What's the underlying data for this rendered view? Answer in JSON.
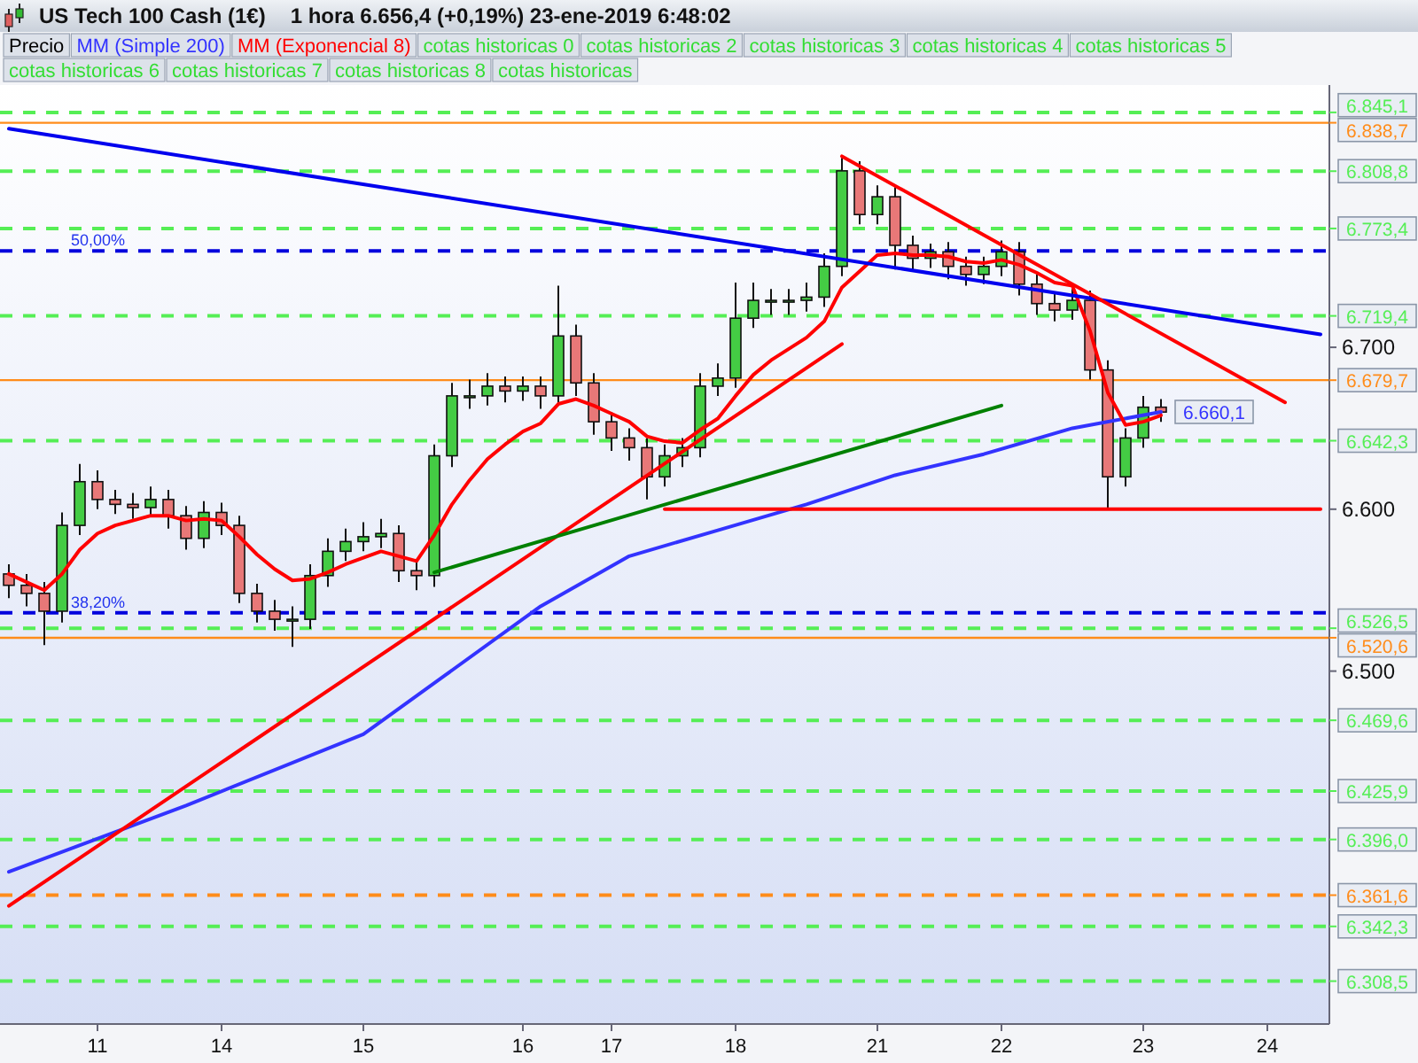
{
  "chart_data": {
    "type": "candlestick",
    "title": "US Tech 100 Cash (1€)",
    "subtitle": "1 hora   6.656,4 (+0,19%)   23-ene-2019 6:48:02",
    "categories": [
      null,
      null,
      null,
      null,
      null,
      "11",
      null,
      null,
      null,
      null,
      null,
      null,
      "14",
      null,
      null,
      null,
      null,
      null,
      null,
      null,
      "15",
      null,
      null,
      null,
      null,
      null,
      null,
      null,
      null,
      "16",
      null,
      null,
      null,
      null,
      "17",
      null,
      null,
      null,
      null,
      null,
      null,
      "18",
      null,
      null,
      null,
      null,
      null,
      null,
      null,
      "21",
      null,
      null,
      null,
      null,
      null,
      null,
      "22",
      null,
      null,
      null,
      null,
      null,
      null,
      null,
      "23",
      null,
      null,
      null,
      null,
      null,
      null,
      "24",
      null,
      null,
      null
    ],
    "ylim": [
      6282,
      6862
    ],
    "yticks": [
      {
        "value": 6500,
        "label": "6.500"
      },
      {
        "value": 6600,
        "label": "6.600"
      },
      {
        "value": 6700,
        "label": "6.700"
      }
    ],
    "legend": "top left",
    "series": [
      {
        "name": "Precio",
        "ohlc": [
          [
            6560,
            6566,
            6545,
            6553
          ],
          [
            6553,
            6560,
            6540,
            6548
          ],
          [
            6548,
            6555,
            6516,
            6537
          ],
          [
            6537,
            6598,
            6530,
            6590
          ],
          [
            6590,
            6628,
            6584,
            6617
          ],
          [
            6617,
            6624,
            6600,
            6606
          ],
          [
            6606,
            6612,
            6597,
            6603
          ],
          [
            6603,
            6610,
            6594,
            6601
          ],
          [
            6601,
            6614,
            6595,
            6606
          ],
          [
            6606,
            6612,
            6588,
            6596
          ],
          [
            6596,
            6602,
            6575,
            6582
          ],
          [
            6582,
            6605,
            6576,
            6598
          ],
          [
            6598,
            6604,
            6584,
            6590
          ],
          [
            6590,
            6596,
            6542,
            6548
          ],
          [
            6548,
            6554,
            6530,
            6537
          ],
          [
            6537,
            6544,
            6525,
            6532
          ],
          [
            6532,
            6540,
            6515,
            6532
          ],
          [
            6532,
            6566,
            6526,
            6559
          ],
          [
            6559,
            6582,
            6552,
            6574
          ],
          [
            6574,
            6588,
            6568,
            6580
          ],
          [
            6580,
            6592,
            6574,
            6583
          ],
          [
            6583,
            6594,
            6576,
            6585
          ],
          [
            6585,
            6590,
            6555,
            6562
          ],
          [
            6562,
            6568,
            6550,
            6559
          ],
          [
            6559,
            6640,
            6552,
            6633
          ],
          [
            6633,
            6678,
            6626,
            6670
          ],
          [
            6670,
            6680,
            6662,
            6670
          ],
          [
            6670,
            6684,
            6664,
            6676
          ],
          [
            6676,
            6682,
            6666,
            6673
          ],
          [
            6673,
            6682,
            6667,
            6676
          ],
          [
            6676,
            6682,
            6662,
            6670
          ],
          [
            6670,
            6738,
            6664,
            6707
          ],
          [
            6707,
            6714,
            6670,
            6678
          ],
          [
            6678,
            6684,
            6646,
            6654
          ],
          [
            6654,
            6660,
            6636,
            6644
          ],
          [
            6644,
            6650,
            6630,
            6638
          ],
          [
            6638,
            6644,
            6606,
            6620
          ],
          [
            6620,
            6640,
            6614,
            6633
          ],
          [
            6633,
            6644,
            6626,
            6638
          ],
          [
            6638,
            6684,
            6632,
            6676
          ],
          [
            6676,
            6690,
            6670,
            6681
          ],
          [
            6681,
            6740,
            6675,
            6718
          ],
          [
            6718,
            6740,
            6712,
            6729
          ],
          [
            6729,
            6736,
            6720,
            6729
          ],
          [
            6729,
            6736,
            6720,
            6729
          ],
          [
            6729,
            6740,
            6722,
            6731
          ],
          [
            6731,
            6758,
            6725,
            6750
          ],
          [
            6750,
            6817,
            6744,
            6809
          ],
          [
            6809,
            6815,
            6776,
            6782
          ],
          [
            6782,
            6800,
            6776,
            6793
          ],
          [
            6793,
            6799,
            6748,
            6763
          ],
          [
            6763,
            6769,
            6748,
            6755
          ],
          [
            6755,
            6764,
            6749,
            6759
          ],
          [
            6759,
            6765,
            6742,
            6750
          ],
          [
            6750,
            6756,
            6738,
            6745
          ],
          [
            6745,
            6756,
            6739,
            6750
          ],
          [
            6750,
            6766,
            6744,
            6759
          ],
          [
            6759,
            6765,
            6732,
            6739
          ],
          [
            6739,
            6745,
            6720,
            6727
          ],
          [
            6727,
            6733,
            6716,
            6723
          ],
          [
            6723,
            6736,
            6717,
            6729
          ],
          [
            6729,
            6735,
            6680,
            6686
          ],
          [
            6686,
            6692,
            6601,
            6620
          ],
          [
            6620,
            6650,
            6614,
            6644
          ],
          [
            6644,
            6670,
            6638,
            6663
          ],
          [
            6663,
            6668,
            6654,
            6660
          ],
          null,
          null,
          null,
          null,
          null,
          null,
          null,
          null,
          null
        ]
      },
      {
        "name": "MM (Simple 200)",
        "type": "line",
        "color": "#3333ff",
        "values": [
          6376,
          null,
          null,
          null,
          null,
          null,
          null,
          null,
          null,
          null,
          6417,
          null,
          null,
          null,
          null,
          null,
          null,
          null,
          null,
          null,
          6461,
          null,
          null,
          null,
          null,
          null,
          null,
          null,
          null,
          null,
          6540,
          null,
          null,
          null,
          null,
          6571,
          null,
          null,
          null,
          null,
          6587,
          null,
          null,
          null,
          null,
          6603,
          null,
          null,
          null,
          null,
          6621,
          null,
          null,
          null,
          null,
          6634,
          null,
          null,
          null,
          null,
          6650,
          null,
          null,
          null,
          null,
          6660.1,
          null,
          null,
          null,
          null,
          null,
          null,
          null,
          null,
          null
        ],
        "value_labels": [
          null,
          null,
          null,
          null,
          null,
          null,
          null,
          null,
          null,
          null,
          null,
          null,
          null,
          null,
          null,
          null,
          null,
          null,
          null,
          null,
          null,
          null,
          null,
          null,
          null,
          null,
          null,
          null,
          null,
          null,
          null,
          null,
          null,
          null,
          null,
          null,
          null,
          null,
          null,
          null,
          null,
          null,
          null,
          null,
          null,
          null,
          null,
          null,
          null,
          null,
          null,
          null,
          null,
          null,
          null,
          null,
          null,
          null,
          null,
          null,
          null,
          null,
          null,
          null,
          null,
          "6.660,1",
          null,
          null,
          null,
          null,
          null,
          null,
          null,
          null,
          null
        ]
      },
      {
        "name": "MM (Exponencial 8)",
        "type": "line",
        "color": "#ff0000",
        "values": [
          6560,
          6555,
          6550,
          6560,
          6575,
          6585,
          6590,
          6593,
          6596,
          6596,
          6593,
          6594,
          6593,
          6583,
          6572,
          6563,
          6556,
          6557,
          6561,
          6566,
          6570,
          6574,
          6571,
          6568,
          6584,
          6603,
          6618,
          6631,
          6640,
          6648,
          6653,
          6665,
          6668,
          6664,
          6659,
          6654,
          6645,
          6642,
          6641,
          6649,
          6656,
          6670,
          6683,
          6692,
          6699,
          6706,
          6716,
          6737,
          6747,
          6757,
          6758,
          6757,
          6757,
          6756,
          6753,
          6752,
          6754,
          6751,
          6746,
          6740,
          6738,
          6710,
          6672,
          6652,
          6654,
          6658,
          null,
          null,
          null,
          null,
          null,
          null,
          null,
          null,
          null
        ],
        "line_style": "solid"
      },
      {
        "type": "line",
        "color": "#0000ee",
        "values": [
          6835,
          null,
          null,
          null,
          null,
          null,
          null,
          null,
          null,
          null,
          null,
          null,
          null,
          null,
          null,
          null,
          null,
          null,
          null,
          null,
          null,
          null,
          null,
          null,
          null,
          null,
          null,
          null,
          null,
          null,
          null,
          null,
          null,
          null,
          null,
          null,
          null,
          null,
          null,
          null,
          null,
          null,
          null,
          null,
          null,
          null,
          null,
          null,
          null,
          null,
          null,
          null,
          null,
          null,
          null,
          null,
          null,
          null,
          null,
          null,
          null,
          null,
          null,
          null,
          null,
          null,
          null,
          null,
          null,
          null,
          null,
          null,
          null,
          null,
          6708
        ]
      },
      {
        "type": "line",
        "color": "#ff0000",
        "values": [
          6355,
          null,
          null,
          null,
          null,
          null,
          null,
          null,
          null,
          null,
          null,
          null,
          null,
          null,
          null,
          null,
          null,
          null,
          null,
          null,
          null,
          null,
          null,
          null,
          null,
          null,
          null,
          null,
          null,
          null,
          null,
          null,
          null,
          null,
          null,
          null,
          null,
          null,
          null,
          null,
          null,
          null,
          null,
          null,
          null,
          null,
          null,
          6702,
          null,
          null,
          null,
          null,
          null,
          null,
          null,
          null,
          null,
          null,
          null,
          null,
          null,
          null,
          null,
          null,
          null,
          null,
          null,
          null,
          null,
          null,
          null,
          null,
          null,
          null,
          null
        ]
      },
      {
        "type": "line",
        "color": "#008000",
        "values": [
          null,
          null,
          null,
          null,
          null,
          null,
          null,
          null,
          null,
          null,
          null,
          null,
          null,
          null,
          null,
          null,
          null,
          null,
          null,
          null,
          null,
          null,
          null,
          null,
          6561,
          null,
          null,
          null,
          null,
          null,
          null,
          null,
          null,
          null,
          null,
          null,
          null,
          null,
          null,
          null,
          null,
          null,
          null,
          null,
          null,
          null,
          null,
          null,
          null,
          null,
          null,
          null,
          null,
          null,
          null,
          null,
          6664,
          null,
          null,
          null,
          null,
          null,
          null,
          null,
          null,
          null,
          null,
          null,
          null,
          null,
          null,
          null,
          null,
          null,
          null
        ]
      },
      {
        "type": "line",
        "color": "#ff0000",
        "values": [
          null,
          null,
          null,
          null,
          null,
          null,
          null,
          null,
          null,
          null,
          null,
          null,
          null,
          null,
          null,
          null,
          null,
          null,
          null,
          null,
          null,
          null,
          null,
          null,
          null,
          null,
          null,
          null,
          null,
          null,
          null,
          null,
          null,
          null,
          null,
          null,
          null,
          null,
          null,
          null,
          null,
          null,
          null,
          null,
          null,
          null,
          null,
          6818,
          null,
          null,
          null,
          null,
          null,
          null,
          null,
          null,
          null,
          null,
          null,
          null,
          null,
          null,
          null,
          null,
          null,
          null,
          null,
          null,
          null,
          null,
          null,
          null,
          6666,
          null,
          null
        ]
      },
      {
        "type": "line",
        "color": "#ff0000",
        "values": [
          null,
          null,
          null,
          null,
          null,
          null,
          null,
          null,
          null,
          null,
          null,
          null,
          null,
          null,
          null,
          null,
          null,
          null,
          null,
          null,
          null,
          null,
          null,
          null,
          null,
          null,
          null,
          null,
          null,
          null,
          null,
          null,
          null,
          null,
          null,
          null,
          null,
          6600,
          null,
          null,
          null,
          null,
          null,
          null,
          null,
          null,
          null,
          null,
          null,
          null,
          null,
          null,
          null,
          null,
          null,
          null,
          null,
          null,
          null,
          null,
          null,
          null,
          null,
          null,
          null,
          null,
          null,
          null,
          null,
          null,
          null,
          null,
          null,
          null,
          6600
        ]
      }
    ],
    "ref_lines": [
      {
        "axis": "y",
        "value": 6845.1,
        "label": "6.845,1",
        "color": "#55ee55",
        "line_style": "dashed"
      },
      {
        "axis": "y",
        "value": 6838.7,
        "label": "6.838,7",
        "color": "#ff8c1a",
        "line_style": "solid"
      },
      {
        "axis": "y",
        "value": 6808.8,
        "label": "6.808,8",
        "color": "#55ee55",
        "line_style": "dashed"
      },
      {
        "axis": "y",
        "value": 6773.4,
        "label": "6.773,4",
        "color": "#55ee55",
        "line_style": "dashed"
      },
      {
        "axis": "y",
        "value": 6759.6,
        "color": "#0000dd",
        "line_style": "dashed"
      },
      {
        "axis": "y",
        "value": 6719.4,
        "label": "6.719,4",
        "color": "#55ee55",
        "line_style": "dashed"
      },
      {
        "axis": "y",
        "value": 6679.7,
        "label": "6.679,7",
        "color": "#ff8c1a",
        "line_style": "solid"
      },
      {
        "axis": "y",
        "value": 6642.3,
        "label": "6.642,3",
        "color": "#55ee55",
        "line_style": "dashed"
      },
      {
        "axis": "y",
        "value": 6536,
        "color": "#0000dd",
        "line_style": "dashed"
      },
      {
        "axis": "y",
        "value": 6526.5,
        "label": "6.526,5",
        "color": "#55ee55",
        "line_style": "dashed"
      },
      {
        "axis": "y",
        "value": 6520.6,
        "label": "6.520,6",
        "color": "#ff8c1a",
        "line_style": "solid"
      },
      {
        "axis": "y",
        "value": 6469.6,
        "label": "6.469,6",
        "color": "#55ee55",
        "line_style": "dashed"
      },
      {
        "axis": "y",
        "value": 6425.9,
        "label": "6.425,9",
        "color": "#55ee55",
        "line_style": "dashed"
      },
      {
        "axis": "y",
        "value": 6396.0,
        "label": "6.396,0",
        "color": "#55ee55",
        "line_style": "dashed"
      },
      {
        "axis": "y",
        "value": 6361.6,
        "label": "6.361,6",
        "color": "#ff8c1a",
        "line_style": "dashed"
      },
      {
        "axis": "y",
        "value": 6342.3,
        "label": "6.342,3",
        "color": "#55ee55",
        "line_style": "dashed"
      },
      {
        "axis": "y",
        "value": 6308.5,
        "label": "6.308,5",
        "color": "#55ee55",
        "line_style": "dashed"
      }
    ],
    "annotations": [
      "cotas historicas 0",
      "cotas historicas 2",
      "cotas historicas 3",
      "cotas historicas 4",
      "cotas historicas 5",
      "cotas historicas 6",
      "cotas historicas 7",
      "cotas historicas 8",
      "cotas historicas",
      {
        "text": "50,00%",
        "y": 6759.6
      },
      {
        "text": "38,20%",
        "y": 6536
      }
    ]
  }
}
